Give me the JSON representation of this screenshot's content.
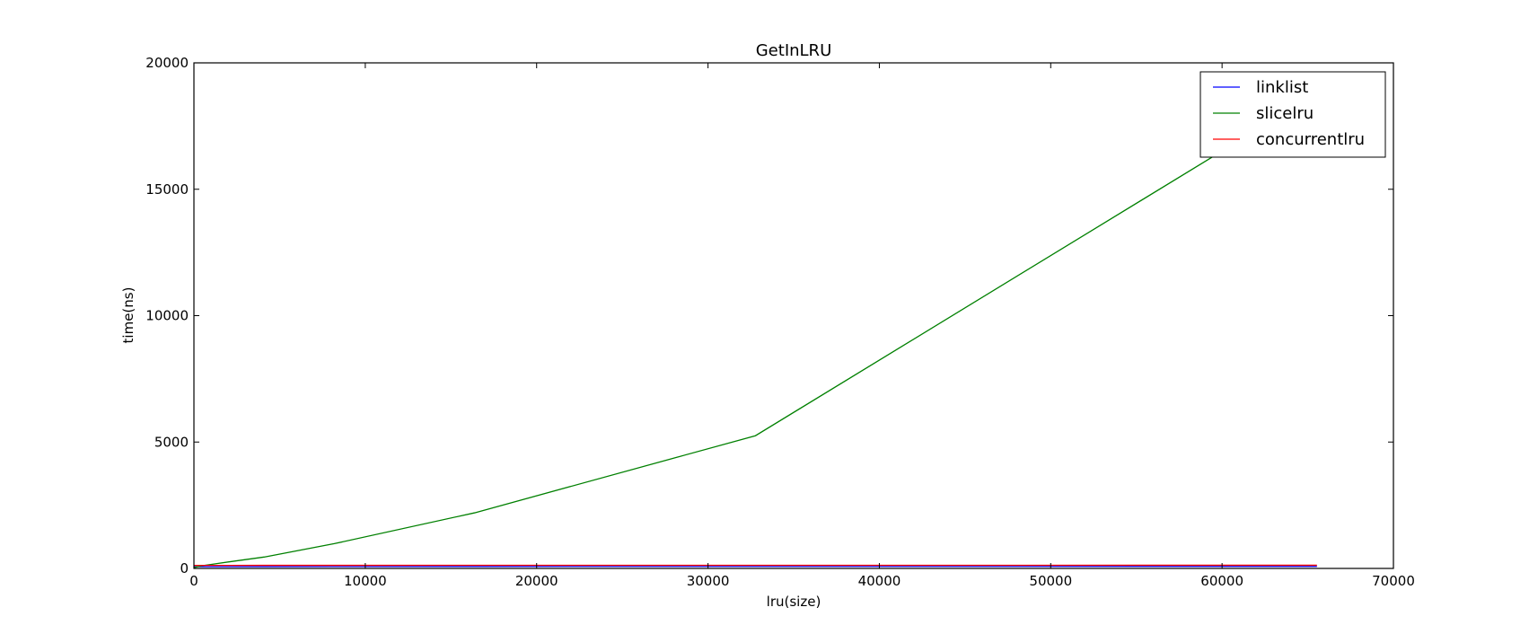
{
  "chart_data": {
    "type": "line",
    "title": "GetInLRU",
    "xlabel": "lru(size)",
    "ylabel": "time(ns)",
    "xlim": [
      0,
      70000
    ],
    "ylim": [
      0,
      20000
    ],
    "xticks": [
      0,
      10000,
      20000,
      30000,
      40000,
      50000,
      60000,
      70000
    ],
    "yticks": [
      0,
      5000,
      10000,
      15000,
      20000
    ],
    "grid": false,
    "legend_position": "top-right",
    "series": [
      {
        "name": "linklist",
        "color": "#0000ff",
        "x": [
          16,
          32,
          64,
          128,
          256,
          512,
          1024,
          2048,
          4096,
          8192,
          16384,
          32768,
          65536
        ],
        "y": [
          70,
          70,
          70,
          70,
          70,
          70,
          70,
          72,
          74,
          76,
          78,
          80,
          82
        ]
      },
      {
        "name": "slicelru",
        "color": "#008000",
        "x": [
          16,
          32,
          64,
          128,
          256,
          512,
          1024,
          2048,
          4096,
          8192,
          16384,
          32768,
          65536
        ],
        "y": [
          25,
          30,
          40,
          55,
          75,
          110,
          160,
          260,
          450,
          980,
          2200,
          5250,
          18800
        ]
      },
      {
        "name": "concurrentlru",
        "color": "#ff0000",
        "x": [
          16,
          32,
          64,
          128,
          256,
          512,
          1024,
          2048,
          4096,
          8192,
          16384,
          32768,
          65536
        ],
        "y": [
          120,
          120,
          120,
          120,
          120,
          120,
          120,
          120,
          122,
          122,
          124,
          125,
          126
        ]
      }
    ]
  }
}
